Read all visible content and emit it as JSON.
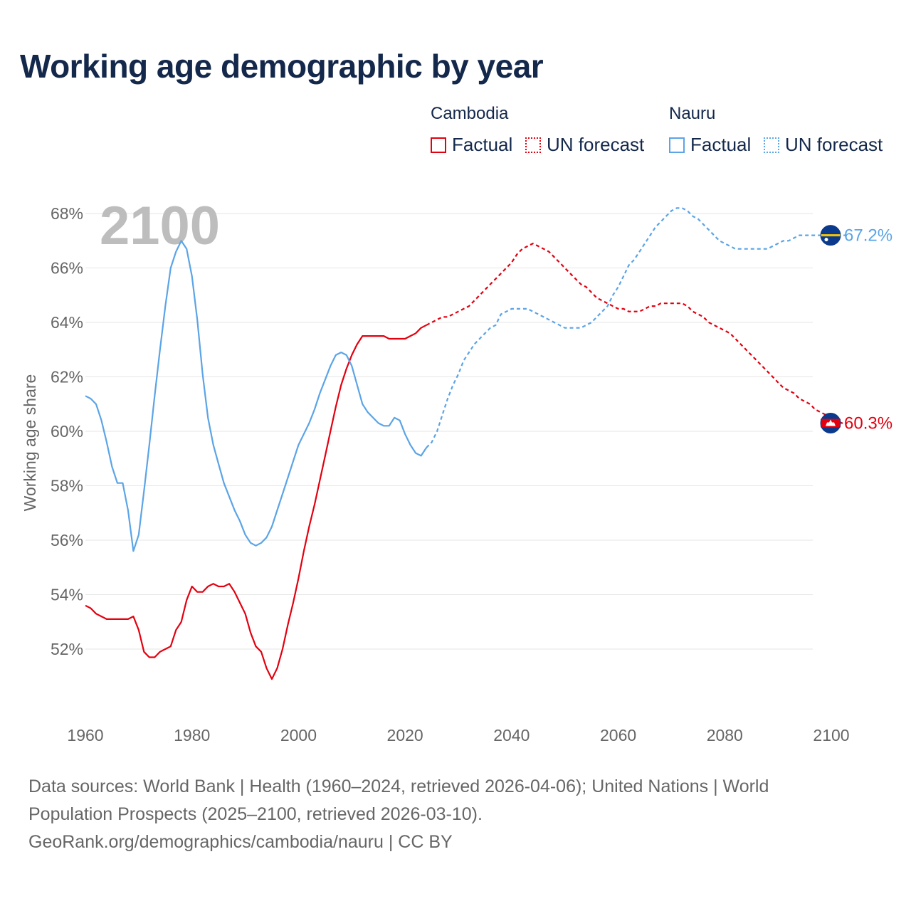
{
  "title": "Working age demographic by year",
  "legend": {
    "groups": [
      {
        "name": "Cambodia",
        "color": "#e3000f",
        "factual_label": "Factual",
        "forecast_label": "UN forecast"
      },
      {
        "name": "Nauru",
        "color": "#5ba4e6",
        "factual_label": "Factual",
        "forecast_label": "UN forecast"
      }
    ]
  },
  "sources": {
    "line1": "Data sources: World Bank | Health (1960–2024, retrieved 2026-04-06); United Nations | World",
    "line2": "Population Prospects (2025–2100, retrieved 2026-03-10).",
    "line3": "GeoRank.org/demographics/cambodia/nauru | CC BY"
  },
  "chart_data": {
    "type": "line",
    "title": "Working age demographic by year",
    "xlabel": "",
    "ylabel": "Working age share",
    "year_watermark": "2100",
    "xlim": [
      1960,
      2100
    ],
    "ylim": [
      50,
      68.5
    ],
    "x_ticks": [
      1960,
      1980,
      2000,
      2020,
      2040,
      2060,
      2080,
      2100
    ],
    "y_ticks": [
      52,
      54,
      56,
      58,
      60,
      62,
      64,
      66,
      68
    ],
    "y_tick_labels": [
      "52%",
      "54%",
      "56%",
      "58%",
      "60%",
      "62%",
      "64%",
      "66%",
      "68%"
    ],
    "grid": true,
    "factual_end_year": 2024,
    "series": [
      {
        "name": "Cambodia",
        "color": "#e3000f",
        "end_label": "60.3%",
        "end_value": 60.3,
        "flag": "cambodia-flag-icon",
        "points": [
          [
            1960,
            53.6
          ],
          [
            1961,
            53.5
          ],
          [
            1962,
            53.3
          ],
          [
            1963,
            53.2
          ],
          [
            1964,
            53.1
          ],
          [
            1965,
            53.1
          ],
          [
            1966,
            53.1
          ],
          [
            1967,
            53.1
          ],
          [
            1968,
            53.1
          ],
          [
            1969,
            53.2
          ],
          [
            1970,
            52.7
          ],
          [
            1971,
            51.9
          ],
          [
            1972,
            51.7
          ],
          [
            1973,
            51.7
          ],
          [
            1974,
            51.9
          ],
          [
            1975,
            52.0
          ],
          [
            1976,
            52.1
          ],
          [
            1977,
            52.7
          ],
          [
            1978,
            53.0
          ],
          [
            1979,
            53.8
          ],
          [
            1980,
            54.3
          ],
          [
            1981,
            54.1
          ],
          [
            1982,
            54.1
          ],
          [
            1983,
            54.3
          ],
          [
            1984,
            54.4
          ],
          [
            1985,
            54.3
          ],
          [
            1986,
            54.3
          ],
          [
            1987,
            54.4
          ],
          [
            1988,
            54.1
          ],
          [
            1989,
            53.7
          ],
          [
            1990,
            53.3
          ],
          [
            1991,
            52.6
          ],
          [
            1992,
            52.1
          ],
          [
            1993,
            51.9
          ],
          [
            1994,
            51.3
          ],
          [
            1995,
            50.9
          ],
          [
            1996,
            51.3
          ],
          [
            1997,
            52.0
          ],
          [
            1998,
            52.9
          ],
          [
            1999,
            53.7
          ],
          [
            2000,
            54.6
          ],
          [
            2001,
            55.6
          ],
          [
            2002,
            56.5
          ],
          [
            2003,
            57.3
          ],
          [
            2004,
            58.2
          ],
          [
            2005,
            59.1
          ],
          [
            2006,
            60.0
          ],
          [
            2007,
            60.9
          ],
          [
            2008,
            61.7
          ],
          [
            2009,
            62.3
          ],
          [
            2010,
            62.8
          ],
          [
            2011,
            63.2
          ],
          [
            2012,
            63.5
          ],
          [
            2013,
            63.5
          ],
          [
            2014,
            63.5
          ],
          [
            2015,
            63.5
          ],
          [
            2016,
            63.5
          ],
          [
            2017,
            63.4
          ],
          [
            2018,
            63.4
          ],
          [
            2019,
            63.4
          ],
          [
            2020,
            63.4
          ],
          [
            2021,
            63.5
          ],
          [
            2022,
            63.6
          ],
          [
            2023,
            63.8
          ],
          [
            2024,
            63.9
          ],
          [
            2025,
            64.0
          ],
          [
            2026,
            64.1
          ],
          [
            2027,
            64.2
          ],
          [
            2028,
            64.2
          ],
          [
            2029,
            64.3
          ],
          [
            2030,
            64.4
          ],
          [
            2031,
            64.5
          ],
          [
            2032,
            64.6
          ],
          [
            2033,
            64.8
          ],
          [
            2034,
            65.0
          ],
          [
            2035,
            65.2
          ],
          [
            2036,
            65.4
          ],
          [
            2037,
            65.6
          ],
          [
            2038,
            65.8
          ],
          [
            2039,
            66.0
          ],
          [
            2040,
            66.2
          ],
          [
            2041,
            66.5
          ],
          [
            2042,
            66.7
          ],
          [
            2043,
            66.8
          ],
          [
            2044,
            66.9
          ],
          [
            2045,
            66.8
          ],
          [
            2046,
            66.7
          ],
          [
            2047,
            66.6
          ],
          [
            2048,
            66.4
          ],
          [
            2049,
            66.2
          ],
          [
            2050,
            66.0
          ],
          [
            2051,
            65.8
          ],
          [
            2052,
            65.6
          ],
          [
            2053,
            65.4
          ],
          [
            2054,
            65.3
          ],
          [
            2055,
            65.1
          ],
          [
            2056,
            64.9
          ],
          [
            2057,
            64.8
          ],
          [
            2058,
            64.7
          ],
          [
            2059,
            64.6
          ],
          [
            2060,
            64.5
          ],
          [
            2061,
            64.5
          ],
          [
            2062,
            64.4
          ],
          [
            2063,
            64.4
          ],
          [
            2064,
            64.4
          ],
          [
            2065,
            64.5
          ],
          [
            2066,
            64.6
          ],
          [
            2067,
            64.6
          ],
          [
            2068,
            64.7
          ],
          [
            2069,
            64.7
          ],
          [
            2070,
            64.7
          ],
          [
            2071,
            64.7
          ],
          [
            2072,
            64.7
          ],
          [
            2073,
            64.6
          ],
          [
            2074,
            64.4
          ],
          [
            2075,
            64.3
          ],
          [
            2076,
            64.2
          ],
          [
            2077,
            64.0
          ],
          [
            2078,
            63.9
          ],
          [
            2079,
            63.8
          ],
          [
            2080,
            63.7
          ],
          [
            2081,
            63.6
          ],
          [
            2082,
            63.4
          ],
          [
            2083,
            63.2
          ],
          [
            2084,
            63.0
          ],
          [
            2085,
            62.8
          ],
          [
            2086,
            62.6
          ],
          [
            2087,
            62.4
          ],
          [
            2088,
            62.2
          ],
          [
            2089,
            62.0
          ],
          [
            2090,
            61.8
          ],
          [
            2091,
            61.6
          ],
          [
            2092,
            61.5
          ],
          [
            2093,
            61.4
          ],
          [
            2094,
            61.2
          ],
          [
            2095,
            61.1
          ],
          [
            2096,
            61.0
          ],
          [
            2097,
            60.8
          ],
          [
            2098,
            60.7
          ],
          [
            2099,
            60.6
          ],
          [
            2100,
            60.5
          ],
          [
            2101,
            60.4
          ],
          [
            2102,
            60.3
          ],
          [
            2103,
            60.3
          ]
        ]
      },
      {
        "name": "Nauru",
        "color": "#5ba4e6",
        "end_label": "67.2%",
        "end_value": 67.2,
        "flag": "nauru-flag-icon",
        "points": [
          [
            1960,
            61.3
          ],
          [
            1961,
            61.2
          ],
          [
            1962,
            61.0
          ],
          [
            1963,
            60.4
          ],
          [
            1964,
            59.6
          ],
          [
            1965,
            58.7
          ],
          [
            1966,
            58.1
          ],
          [
            1967,
            58.1
          ],
          [
            1968,
            57.1
          ],
          [
            1969,
            55.6
          ],
          [
            1970,
            56.2
          ],
          [
            1971,
            57.8
          ],
          [
            1972,
            59.5
          ],
          [
            1973,
            61.3
          ],
          [
            1974,
            63.0
          ],
          [
            1975,
            64.6
          ],
          [
            1976,
            66.0
          ],
          [
            1977,
            66.6
          ],
          [
            1978,
            67.0
          ],
          [
            1979,
            66.7
          ],
          [
            1980,
            65.7
          ],
          [
            1981,
            64.1
          ],
          [
            1982,
            62.1
          ],
          [
            1983,
            60.5
          ],
          [
            1984,
            59.5
          ],
          [
            1985,
            58.8
          ],
          [
            1986,
            58.1
          ],
          [
            1987,
            57.6
          ],
          [
            1988,
            57.1
          ],
          [
            1989,
            56.7
          ],
          [
            1990,
            56.2
          ],
          [
            1991,
            55.9
          ],
          [
            1992,
            55.8
          ],
          [
            1993,
            55.9
          ],
          [
            1994,
            56.1
          ],
          [
            1995,
            56.5
          ],
          [
            1996,
            57.1
          ],
          [
            1997,
            57.7
          ],
          [
            1998,
            58.3
          ],
          [
            1999,
            58.9
          ],
          [
            2000,
            59.5
          ],
          [
            2001,
            59.9
          ],
          [
            2002,
            60.3
          ],
          [
            2003,
            60.8
          ],
          [
            2004,
            61.4
          ],
          [
            2005,
            61.9
          ],
          [
            2006,
            62.4
          ],
          [
            2007,
            62.8
          ],
          [
            2008,
            62.9
          ],
          [
            2009,
            62.8
          ],
          [
            2010,
            62.4
          ],
          [
            2011,
            61.7
          ],
          [
            2012,
            61.0
          ],
          [
            2013,
            60.7
          ],
          [
            2014,
            60.5
          ],
          [
            2015,
            60.3
          ],
          [
            2016,
            60.2
          ],
          [
            2017,
            60.2
          ],
          [
            2018,
            60.5
          ],
          [
            2019,
            60.4
          ],
          [
            2020,
            59.9
          ],
          [
            2021,
            59.5
          ],
          [
            2022,
            59.2
          ],
          [
            2023,
            59.1
          ],
          [
            2024,
            59.4
          ],
          [
            2025,
            59.6
          ],
          [
            2026,
            60.0
          ],
          [
            2027,
            60.6
          ],
          [
            2028,
            61.2
          ],
          [
            2029,
            61.7
          ],
          [
            2030,
            62.1
          ],
          [
            2031,
            62.6
          ],
          [
            2032,
            62.9
          ],
          [
            2033,
            63.2
          ],
          [
            2034,
            63.4
          ],
          [
            2035,
            63.6
          ],
          [
            2036,
            63.8
          ],
          [
            2037,
            63.9
          ],
          [
            2038,
            64.3
          ],
          [
            2039,
            64.4
          ],
          [
            2040,
            64.5
          ],
          [
            2041,
            64.5
          ],
          [
            2042,
            64.5
          ],
          [
            2043,
            64.5
          ],
          [
            2044,
            64.4
          ],
          [
            2045,
            64.3
          ],
          [
            2046,
            64.2
          ],
          [
            2047,
            64.1
          ],
          [
            2048,
            64.0
          ],
          [
            2049,
            63.9
          ],
          [
            2050,
            63.8
          ],
          [
            2051,
            63.8
          ],
          [
            2052,
            63.8
          ],
          [
            2053,
            63.8
          ],
          [
            2054,
            63.9
          ],
          [
            2055,
            64.0
          ],
          [
            2056,
            64.2
          ],
          [
            2057,
            64.4
          ],
          [
            2058,
            64.6
          ],
          [
            2059,
            65.0
          ],
          [
            2060,
            65.3
          ],
          [
            2061,
            65.7
          ],
          [
            2062,
            66.1
          ],
          [
            2063,
            66.3
          ],
          [
            2064,
            66.6
          ],
          [
            2065,
            66.9
          ],
          [
            2066,
            67.2
          ],
          [
            2067,
            67.5
          ],
          [
            2068,
            67.7
          ],
          [
            2069,
            67.9
          ],
          [
            2070,
            68.1
          ],
          [
            2071,
            68.2
          ],
          [
            2072,
            68.2
          ],
          [
            2073,
            68.1
          ],
          [
            2074,
            67.9
          ],
          [
            2075,
            67.8
          ],
          [
            2076,
            67.6
          ],
          [
            2077,
            67.4
          ],
          [
            2078,
            67.2
          ],
          [
            2079,
            67.0
          ],
          [
            2080,
            66.9
          ],
          [
            2081,
            66.8
          ],
          [
            2082,
            66.7
          ],
          [
            2083,
            66.7
          ],
          [
            2084,
            66.7
          ],
          [
            2085,
            66.7
          ],
          [
            2086,
            66.7
          ],
          [
            2087,
            66.7
          ],
          [
            2088,
            66.7
          ],
          [
            2089,
            66.8
          ],
          [
            2090,
            66.9
          ],
          [
            2091,
            67.0
          ],
          [
            2092,
            67.0
          ],
          [
            2093,
            67.1
          ],
          [
            2094,
            67.2
          ],
          [
            2095,
            67.2
          ],
          [
            2096,
            67.2
          ],
          [
            2097,
            67.2
          ],
          [
            2098,
            67.2
          ],
          [
            2099,
            67.2
          ],
          [
            2100,
            67.2
          ],
          [
            2101,
            67.2
          ],
          [
            2102,
            67.2
          ],
          [
            2103,
            67.2
          ]
        ]
      }
    ]
  }
}
